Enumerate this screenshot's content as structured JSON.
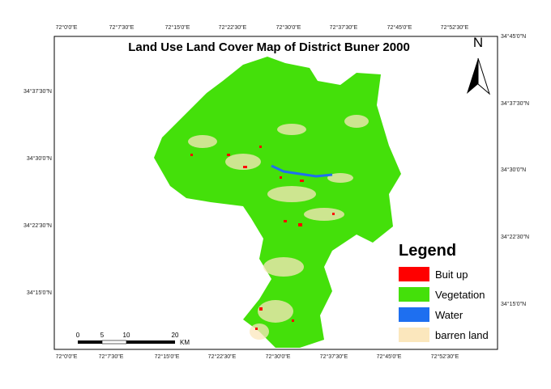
{
  "map": {
    "title": "Land Use Land Cover Map of District Buner 2000",
    "north": "N",
    "graticule": {
      "top": [
        "72°0'0\"E",
        "72°7'30\"E",
        "72°15'0\"E",
        "72°22'30\"E",
        "72°30'0\"E",
        "72°37'30\"E",
        "72°45'0\"E",
        "72°52'30\"E"
      ],
      "bottom": [
        "72°0'0\"E",
        "72°7'30\"E",
        "72°15'0\"E",
        "72°22'30\"E",
        "72°30'0\"E",
        "72°37'30\"E",
        "72°45'0\"E",
        "72°52'30\"E"
      ],
      "left": [
        "34°37'30\"N",
        "34°30'0\"N",
        "34°22'30\"N",
        "34°15'0\"N"
      ],
      "right": [
        "34°45'0\"N",
        "34°37'30\"N",
        "34°30'0\"N",
        "34°22'30\"N",
        "34°15'0\"N"
      ]
    },
    "scale_bar": {
      "labels": [
        "0",
        "5",
        "10",
        "20"
      ],
      "unit": "KM"
    },
    "legend": {
      "title": "Legend",
      "items": [
        {
          "label": "Buit up",
          "color": "#ff0000"
        },
        {
          "label": "Vegetation",
          "color": "#44e00a"
        },
        {
          "label": "Water",
          "color": "#1e6ff0"
        },
        {
          "label": "barren land",
          "color": "#fbe7bd"
        }
      ]
    }
  }
}
